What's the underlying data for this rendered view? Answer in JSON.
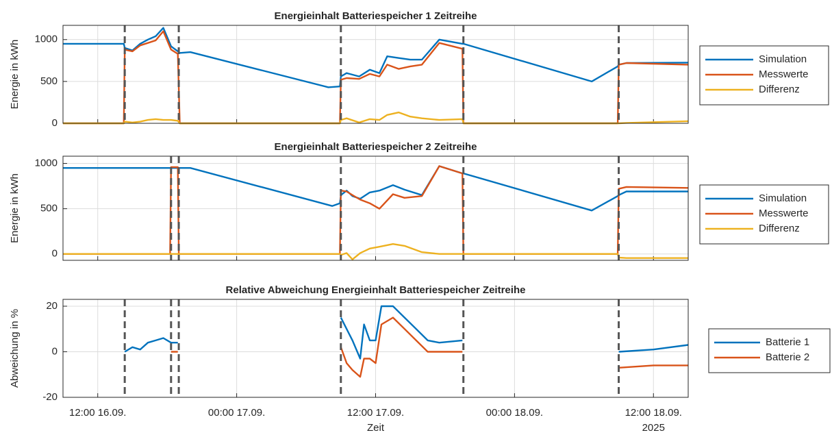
{
  "chart_data": [
    {
      "type": "line",
      "title": "Energieinhalt Batteriespeicher 1 Zeitreihe",
      "ylabel": "Energie in kWh",
      "x": [
        "2025-09-16T09:00",
        "2025-09-16T14:15",
        "2025-09-16T14:20",
        "2025-09-16T15:00",
        "2025-09-16T15:40",
        "2025-09-16T16:20",
        "2025-09-16T17:00",
        "2025-09-16T17:40",
        "2025-09-16T18:20",
        "2025-09-16T18:55",
        "2025-09-16T19:05",
        "2025-09-16T20:00",
        "2025-09-17T07:55",
        "2025-09-17T08:55",
        "2025-09-17T09:00",
        "2025-09-17T09:30",
        "2025-09-17T10:35",
        "2025-09-17T11:30",
        "2025-09-17T12:20",
        "2025-09-17T13:00",
        "2025-09-17T14:00",
        "2025-09-17T15:00",
        "2025-09-17T16:00",
        "2025-09-17T17:30",
        "2025-09-17T19:30",
        "2025-09-17T19:35",
        "2025-09-18T06:40",
        "2025-09-18T08:55",
        "2025-09-18T09:00",
        "2025-09-18T09:40",
        "2025-09-18T15:00"
      ],
      "series": [
        {
          "name": "Simulation",
          "color": "#0072bd",
          "values": [
            950,
            950,
            900,
            870,
            950,
            1000,
            1040,
            1140,
            920,
            860,
            840,
            850,
            430,
            440,
            560,
            600,
            560,
            640,
            600,
            800,
            780,
            760,
            760,
            1000,
            950,
            950,
            500,
            680,
            700,
            720,
            725
          ]
        },
        {
          "name": "Messwerte",
          "color": "#d95319",
          "values": [
            0,
            0,
            880,
            860,
            930,
            960,
            990,
            1100,
            880,
            830,
            0,
            0,
            0,
            0,
            520,
            540,
            530,
            590,
            560,
            700,
            650,
            680,
            700,
            960,
            890,
            0,
            0,
            0,
            700,
            720,
            700
          ]
        },
        {
          "name": "Differenz",
          "color": "#edb120",
          "values": [
            0,
            0,
            20,
            10,
            20,
            40,
            50,
            40,
            40,
            30,
            0,
            0,
            0,
            0,
            40,
            60,
            10,
            50,
            40,
            100,
            130,
            80,
            60,
            40,
            50,
            0,
            0,
            0,
            0,
            5,
            25
          ]
        }
      ],
      "xlim": [
        "2025-09-16T09:00",
        "2025-09-18T15:00"
      ],
      "xticks": [
        "2025-09-16T12:00",
        "2025-09-17T00:00",
        "2025-09-17T12:00",
        "2025-09-18T00:00",
        "2025-09-18T12:00"
      ],
      "ylim": [
        0,
        1170
      ],
      "yticks": [
        0,
        500,
        1000
      ],
      "vlines": [
        "2025-09-16T14:20",
        "2025-09-16T19:00",
        "2025-09-17T09:00",
        "2025-09-17T19:35",
        "2025-09-18T09:00"
      ],
      "grid": true,
      "legend": "outside right"
    },
    {
      "type": "line",
      "title": "Energieinhalt Batteriespeicher 2 Zeitreihe",
      "ylabel": "Energie in kWh",
      "x": [
        "2025-09-16T09:00",
        "2025-09-16T18:15",
        "2025-09-16T18:20",
        "2025-09-16T18:55",
        "2025-09-16T19:00",
        "2025-09-16T20:00",
        "2025-09-17T08:15",
        "2025-09-17T08:55",
        "2025-09-17T09:00",
        "2025-09-17T09:30",
        "2025-09-17T10:00",
        "2025-09-17T10:40",
        "2025-09-17T11:30",
        "2025-09-17T12:20",
        "2025-09-17T13:30",
        "2025-09-17T14:30",
        "2025-09-17T16:00",
        "2025-09-17T17:30",
        "2025-09-17T19:30",
        "2025-09-17T19:35",
        "2025-09-18T06:40",
        "2025-09-18T08:55",
        "2025-09-18T09:00",
        "2025-09-18T09:40",
        "2025-09-18T15:00"
      ],
      "series": [
        {
          "name": "Simulation",
          "color": "#0072bd",
          "values": [
            950,
            950,
            950,
            950,
            950,
            950,
            530,
            560,
            650,
            700,
            640,
            610,
            680,
            700,
            760,
            710,
            650,
            970,
            890,
            890,
            480,
            640,
            650,
            690,
            690
          ]
        },
        {
          "name": "Messwerte",
          "color": "#d95319",
          "values": [
            0,
            0,
            960,
            960,
            0,
            0,
            0,
            0,
            700,
            690,
            650,
            600,
            560,
            500,
            660,
            620,
            640,
            970,
            890,
            0,
            0,
            0,
            720,
            740,
            730
          ]
        },
        {
          "name": "Differenz",
          "color": "#edb120",
          "values": [
            0,
            0,
            0,
            0,
            0,
            0,
            0,
            0,
            -10,
            10,
            -60,
            10,
            60,
            80,
            110,
            90,
            20,
            0,
            0,
            0,
            0,
            0,
            -40,
            -45,
            -45
          ]
        }
      ],
      "xlim": [
        "2025-09-16T09:00",
        "2025-09-18T15:00"
      ],
      "xticks": [
        "2025-09-16T12:00",
        "2025-09-17T00:00",
        "2025-09-17T12:00",
        "2025-09-18T00:00",
        "2025-09-18T12:00"
      ],
      "ylim": [
        -70,
        1080
      ],
      "yticks": [
        0,
        500,
        1000
      ],
      "vlines": [
        "2025-09-16T18:20",
        "2025-09-16T19:00",
        "2025-09-17T09:00",
        "2025-09-17T19:35",
        "2025-09-18T09:00"
      ],
      "grid": true,
      "legend": "outside right"
    },
    {
      "type": "line",
      "title": "Relative Abweichung Energieinhalt Batteriespeicher Zeitreihe",
      "ylabel": "Abweichung in %",
      "xlabel": "Zeit",
      "x_secondary_label": "2025",
      "x": [
        "2025-09-16T14:20",
        "2025-09-16T15:00",
        "2025-09-16T15:40",
        "2025-09-16T16:20",
        "2025-09-16T17:00",
        "2025-09-16T17:40",
        "2025-09-16T18:20",
        "2025-09-16T18:55",
        "2025-09-16T19:00",
        "2025-09-17T09:00",
        "2025-09-17T09:30",
        "2025-09-17T10:00",
        "2025-09-17T10:40",
        "2025-09-17T11:00",
        "2025-09-17T11:30",
        "2025-09-17T12:00",
        "2025-09-17T12:30",
        "2025-09-17T13:30",
        "2025-09-17T14:30",
        "2025-09-17T15:30",
        "2025-09-17T16:30",
        "2025-09-17T17:30",
        "2025-09-17T19:30",
        "2025-09-17T19:35",
        "2025-09-18T09:00",
        "2025-09-18T12:00",
        "2025-09-18T15:00"
      ],
      "series": [
        {
          "name": "Batterie 1",
          "color": "#0072bd",
          "values": [
            0,
            2,
            1,
            4,
            5,
            6,
            4,
            4,
            null,
            15,
            10,
            5,
            -3,
            12,
            5,
            5,
            20,
            20,
            15,
            10,
            5,
            4,
            5,
            null,
            0,
            1,
            3
          ]
        },
        {
          "name": "Batterie 2",
          "color": "#d95319",
          "values": [
            null,
            null,
            null,
            null,
            null,
            null,
            0,
            0,
            null,
            2,
            -5,
            -8,
            -11,
            -3,
            -3,
            -5,
            12,
            15,
            10,
            5,
            0,
            0,
            0,
            null,
            -7,
            -6,
            -6
          ]
        }
      ],
      "xlim": [
        "2025-09-16T09:00",
        "2025-09-18T15:00"
      ],
      "xticks": [
        {
          "value": "2025-09-16T12:00",
          "label": "12:00 16.09."
        },
        {
          "value": "2025-09-17T00:00",
          "label": "00:00 17.09."
        },
        {
          "value": "2025-09-17T12:00",
          "label": "12:00 17.09."
        },
        {
          "value": "2025-09-18T00:00",
          "label": "00:00 18.09."
        },
        {
          "value": "2025-09-18T12:00",
          "label": "12:00 18.09."
        }
      ],
      "ylim": [
        -20,
        23
      ],
      "yticks": [
        -20,
        0,
        20
      ],
      "vlines": [
        "2025-09-16T14:20",
        "2025-09-16T18:20",
        "2025-09-16T19:00",
        "2025-09-17T09:00",
        "2025-09-17T19:35",
        "2025-09-18T09:00"
      ],
      "grid": true,
      "legend": "outside right"
    }
  ]
}
